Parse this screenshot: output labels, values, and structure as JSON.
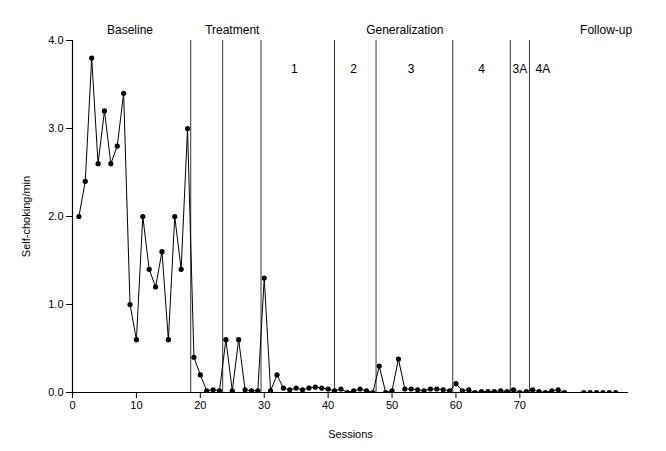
{
  "chart_data": {
    "type": "line",
    "x_label": "Sessions",
    "y_label": "Self-choking/min",
    "x": [
      1,
      2,
      3,
      4,
      5,
      6,
      7,
      8,
      9,
      10,
      11,
      12,
      13,
      14,
      15,
      16,
      17,
      18,
      19,
      20,
      21,
      22,
      23,
      24,
      25,
      26,
      27,
      28,
      29,
      30,
      31,
      32,
      33,
      34,
      35,
      36,
      37,
      38,
      39,
      40,
      41,
      42,
      43,
      44,
      45,
      46,
      47,
      48,
      49,
      50,
      51,
      52,
      53,
      54,
      55,
      56,
      57,
      58,
      59,
      60,
      61,
      62,
      63,
      64,
      65,
      66,
      67,
      68,
      69,
      70,
      71,
      72,
      73,
      74,
      75,
      76,
      77,
      78,
      80,
      81,
      82,
      83,
      84,
      85
    ],
    "values": [
      2.0,
      2.4,
      3.8,
      2.6,
      3.2,
      2.6,
      2.8,
      3.4,
      1.0,
      0.6,
      2.0,
      1.4,
      1.2,
      1.6,
      0.6,
      2.0,
      1.4,
      3.0,
      0.4,
      0.2,
      0.02,
      0.03,
      0.02,
      0.6,
      0.02,
      0.6,
      0.03,
      0.02,
      0.02,
      1.3,
      0.02,
      0.2,
      0.05,
      0.03,
      0.05,
      0.03,
      0.05,
      0.06,
      0.05,
      0.04,
      0.02,
      0.04,
      0,
      0.02,
      0.04,
      0.02,
      0,
      0.3,
      0,
      0.02,
      0.38,
      0.04,
      0.04,
      0.03,
      0.02,
      0.04,
      0.04,
      0.03,
      0.02,
      0.1,
      0.02,
      0.03,
      0,
      0.01,
      0.01,
      0.01,
      0.02,
      0.01,
      0.03,
      0,
      0.01,
      0.03,
      0.01,
      0,
      0.02,
      0.03,
      0,
      null,
      0,
      0,
      0,
      0,
      0,
      0
    ],
    "color": "#000000",
    "marker": "circle",
    "xlim": [
      0,
      87
    ],
    "xticks": [
      0,
      10,
      20,
      30,
      40,
      50,
      60,
      70
    ],
    "ylim": [
      0,
      4
    ],
    "yticks": [
      0,
      1,
      2,
      3,
      4
    ],
    "phase_lines": [
      18.5,
      23.5,
      29.5,
      41,
      47.5,
      59.5,
      68.5,
      71.5
    ],
    "annotations": [
      {
        "text": "Baseline",
        "x": 9,
        "y": 4.12
      },
      {
        "text": "Treatment",
        "x": 25,
        "y": 4.12
      },
      {
        "text": "Generalization",
        "x": 52,
        "y": 4.12
      },
      {
        "text": "Follow-up",
        "x": 83.5,
        "y": 4.12
      },
      {
        "text": "1",
        "x": 34.7,
        "y": 3.68
      },
      {
        "text": "2",
        "x": 44,
        "y": 3.68
      },
      {
        "text": "3",
        "x": 53,
        "y": 3.68
      },
      {
        "text": "4",
        "x": 64,
        "y": 3.68
      },
      {
        "text": "3A",
        "x": 70,
        "y": 3.68
      },
      {
        "text": "4A",
        "x": 73.6,
        "y": 3.68
      }
    ]
  }
}
